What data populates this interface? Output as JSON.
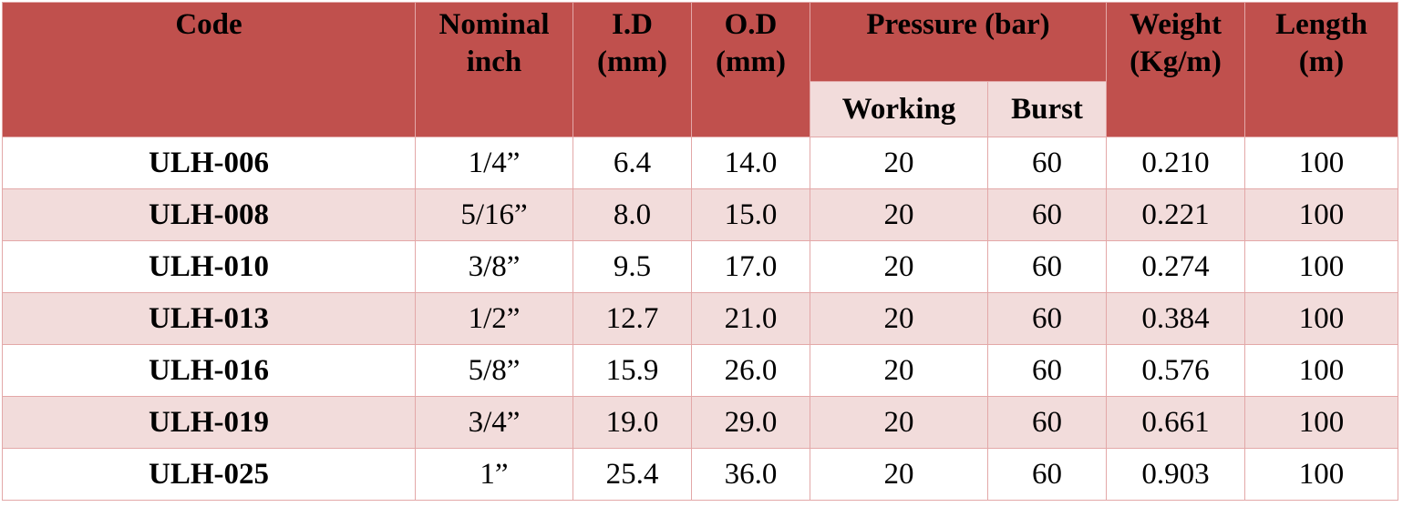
{
  "header": {
    "code": "Code",
    "nominal": [
      "Nominal",
      "inch"
    ],
    "id": [
      "I.D",
      "(mm)"
    ],
    "od": [
      "O.D",
      "(mm)"
    ],
    "pressure": "Pressure (bar)",
    "working": "Working",
    "burst": "Burst",
    "weight": [
      "Weight",
      "(Kg/m)"
    ],
    "length": [
      "Length",
      "(m)"
    ]
  },
  "rows": [
    {
      "code": "ULH-006",
      "nominal": "1/4”",
      "id": "6.4",
      "od": "14.0",
      "working": "20",
      "burst": "60",
      "weight": "0.210",
      "length": "100"
    },
    {
      "code": "ULH-008",
      "nominal": "5/16”",
      "id": "8.0",
      "od": "15.0",
      "working": "20",
      "burst": "60",
      "weight": "0.221",
      "length": "100"
    },
    {
      "code": "ULH-010",
      "nominal": "3/8”",
      "id": "9.5",
      "od": "17.0",
      "working": "20",
      "burst": "60",
      "weight": "0.274",
      "length": "100"
    },
    {
      "code": "ULH-013",
      "nominal": "1/2”",
      "id": "12.7",
      "od": "21.0",
      "working": "20",
      "burst": "60",
      "weight": "0.384",
      "length": "100"
    },
    {
      "code": "ULH-016",
      "nominal": "5/8”",
      "id": "15.9",
      "od": "26.0",
      "working": "20",
      "burst": "60",
      "weight": "0.576",
      "length": "100"
    },
    {
      "code": "ULH-019",
      "nominal": "3/4”",
      "id": "19.0",
      "od": "29.0",
      "working": "20",
      "burst": "60",
      "weight": "0.661",
      "length": "100"
    },
    {
      "code": "ULH-025",
      "nominal": "1”",
      "id": "25.4",
      "od": "36.0",
      "working": "20",
      "burst": "60",
      "weight": "0.903",
      "length": "100"
    }
  ],
  "colors": {
    "header_bg": "#c0504d",
    "subheader_bg": "#f2dcdb",
    "band_bg": "#f2dcdb",
    "border": "#e3a8a8"
  }
}
